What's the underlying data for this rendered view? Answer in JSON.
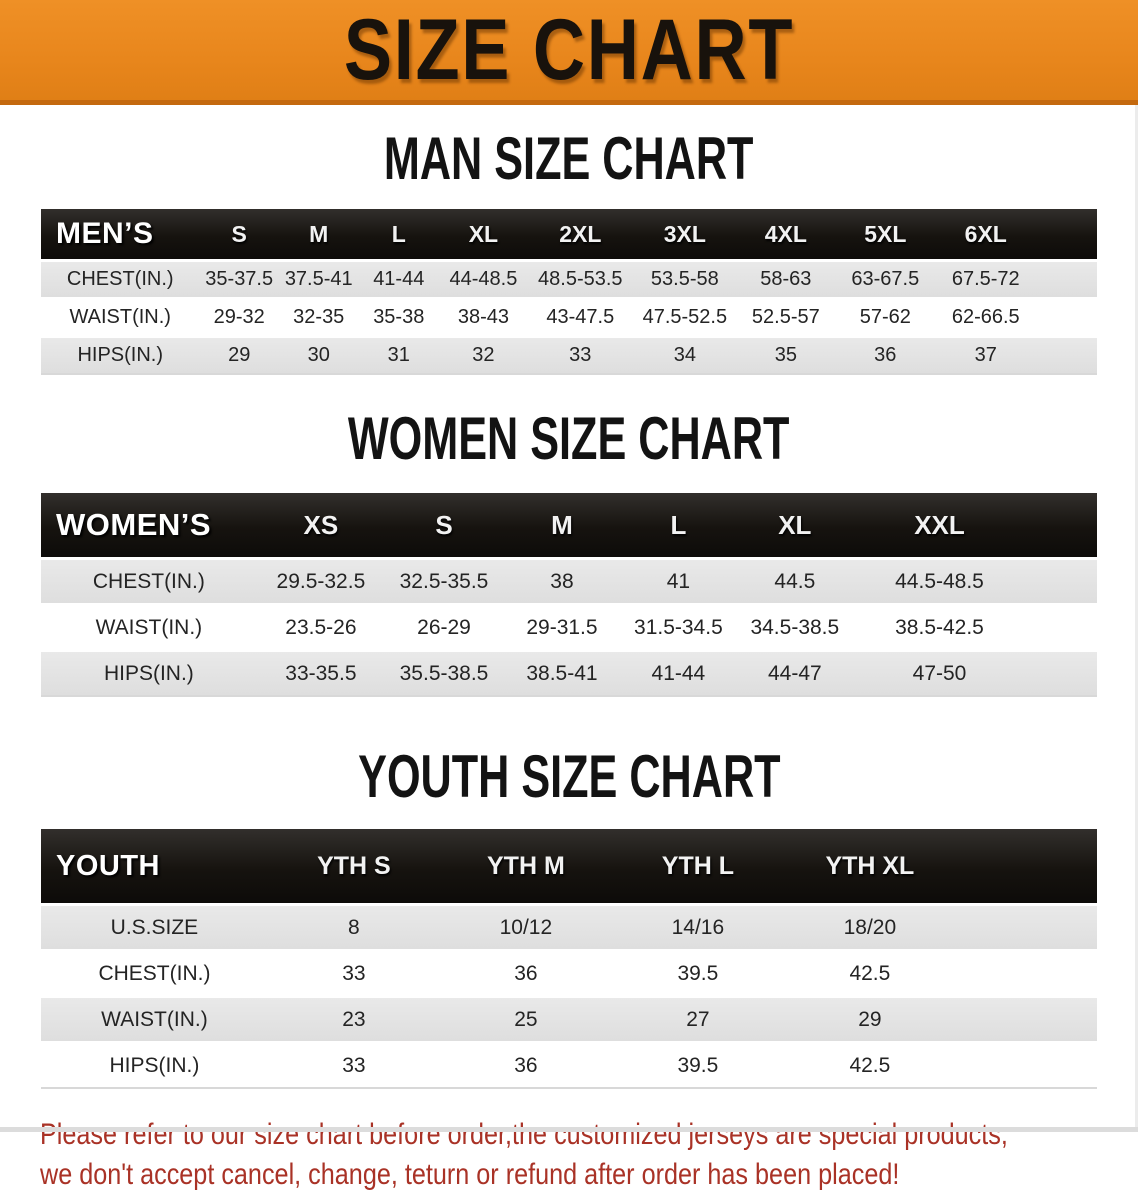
{
  "banner": {
    "title": "SIZE CHART",
    "bg_color": "#E8861C",
    "border_color": "#C4690F",
    "text_color": "#18120C"
  },
  "sections": [
    {
      "heading": "MAN SIZE CHART",
      "table": {
        "label": "MEN’S",
        "columns": [
          "S",
          "M",
          "L",
          "XL",
          "2XL",
          "3XL",
          "4XL",
          "5XL",
          "6XL"
        ],
        "rows": [
          {
            "label": "CHEST(IN.)",
            "values": [
              "35-37.5",
              "37.5-41",
              "41-44",
              "44-48.5",
              "48.5-53.5",
              "53.5-58",
              "58-63",
              "63-67.5",
              "67.5-72"
            ]
          },
          {
            "label": "WAIST(IN.)",
            "values": [
              "29-32",
              "32-35",
              "35-38",
              "38-43",
              "43-47.5",
              "47.5-52.5",
              "52.5-57",
              "57-62",
              "62-66.5"
            ]
          },
          {
            "label": "HIPS(IN.)",
            "values": [
              "29",
              "30",
              "31",
              "32",
              "33",
              "34",
              "35",
              "36",
              "37"
            ]
          }
        ]
      }
    },
    {
      "heading": "WOMEN SIZE CHART",
      "table": {
        "label": "WOMEN’S",
        "columns": [
          "XS",
          "S",
          "M",
          "L",
          "XL",
          "XXL"
        ],
        "rows": [
          {
            "label": "CHEST(IN.)",
            "values": [
              "29.5-32.5",
              "32.5-35.5",
              "38",
              "41",
              "44.5",
              "44.5-48.5"
            ]
          },
          {
            "label": "WAIST(IN.)",
            "values": [
              "23.5-26",
              "26-29",
              "29-31.5",
              "31.5-34.5",
              "34.5-38.5",
              "38.5-42.5"
            ]
          },
          {
            "label": "HIPS(IN.)",
            "values": [
              "33-35.5",
              "35.5-38.5",
              "38.5-41",
              "41-44",
              "44-47",
              "47-50"
            ]
          }
        ]
      }
    },
    {
      "heading": "YOUTH SIZE CHART",
      "table": {
        "label": "YOUTH",
        "columns": [
          "YTH S",
          "YTH M",
          "YTH L",
          "YTH XL"
        ],
        "rows": [
          {
            "label": "U.S.SIZE",
            "values": [
              "8",
              "10/12",
              "14/16",
              "18/20"
            ]
          },
          {
            "label": "CHEST(IN.)",
            "values": [
              "33",
              "36",
              "39.5",
              "42.5"
            ]
          },
          {
            "label": "WAIST(IN.)",
            "values": [
              "23",
              "25",
              "27",
              "29"
            ]
          },
          {
            "label": "HIPS(IN.)",
            "values": [
              "33",
              "36",
              "39.5",
              "42.5"
            ]
          }
        ]
      }
    }
  ],
  "footer": {
    "line1": "Please refer to our size chart before order,the customized jerseys are special products,",
    "line2": "we don't accept cancel, change, teturn or refund after order has been placed!",
    "text_color": "#A93226",
    "stripe_gray": "#E3E3E3",
    "header_black": "#161310"
  }
}
